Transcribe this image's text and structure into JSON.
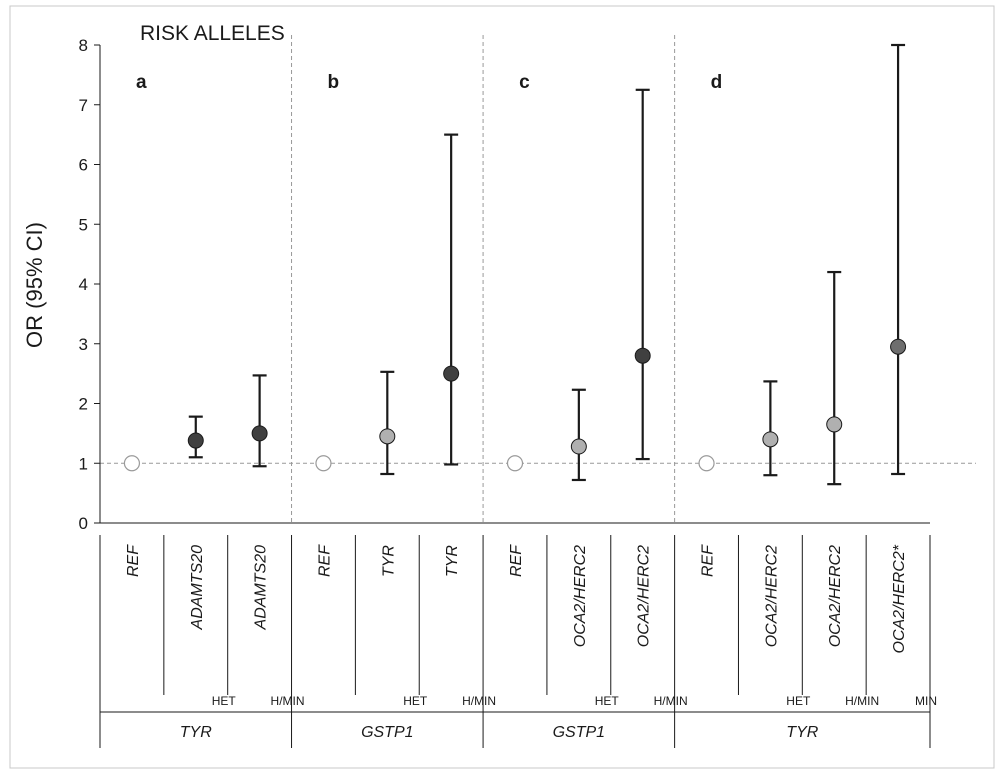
{
  "chart_data": {
    "type": "scatter",
    "title": "RISK ALLELES",
    "ylabel": "OR (95% CI)",
    "ylim": [
      0,
      8
    ],
    "yticks": [
      "0",
      "1",
      "2",
      "3",
      "4",
      "5",
      "6",
      "7",
      "8"
    ],
    "reference_line": 1,
    "panels": [
      {
        "label": "a",
        "gene": "TYR",
        "points": [
          {
            "label": "REF",
            "group": "",
            "or": 1.0,
            "lo": null,
            "hi": null,
            "fill": "#ffffff"
          },
          {
            "label": "ADAMTS20",
            "group": "HET",
            "or": 1.38,
            "lo": 1.1,
            "hi": 1.78,
            "fill": "#404040"
          },
          {
            "label": "ADAMTS20",
            "group": "H/MIN",
            "or": 1.5,
            "lo": 0.95,
            "hi": 2.47,
            "fill": "#404040"
          }
        ]
      },
      {
        "label": "b",
        "gene": "GSTP1",
        "points": [
          {
            "label": "REF",
            "group": "",
            "or": 1.0,
            "lo": null,
            "hi": null,
            "fill": "#ffffff"
          },
          {
            "label": "TYR",
            "group": "HET",
            "or": 1.45,
            "lo": 0.82,
            "hi": 2.53,
            "fill": "#b0b0b0"
          },
          {
            "label": "TYR",
            "group": "H/MIN",
            "or": 2.5,
            "lo": 0.98,
            "hi": 6.5,
            "fill": "#404040"
          }
        ]
      },
      {
        "label": "c",
        "gene": "GSTP1",
        "points": [
          {
            "label": "REF",
            "group": "",
            "or": 1.0,
            "lo": null,
            "hi": null,
            "fill": "#ffffff"
          },
          {
            "label": "OCA2/HERC2",
            "group": "HET",
            "or": 1.28,
            "lo": 0.72,
            "hi": 2.23,
            "fill": "#b0b0b0"
          },
          {
            "label": "OCA2/HERC2",
            "group": "H/MIN",
            "or": 2.8,
            "lo": 1.07,
            "hi": 7.25,
            "fill": "#404040"
          }
        ]
      },
      {
        "label": "d",
        "gene": "TYR",
        "points": [
          {
            "label": "REF",
            "group": "",
            "or": 1.0,
            "lo": null,
            "hi": null,
            "fill": "#ffffff"
          },
          {
            "label": "OCA2/HERC2",
            "group": "HET",
            "or": 1.4,
            "lo": 0.8,
            "hi": 2.37,
            "fill": "#b0b0b0"
          },
          {
            "label": "OCA2/HERC2",
            "group": "H/MIN",
            "or": 1.65,
            "lo": 0.65,
            "hi": 4.2,
            "fill": "#b0b0b0"
          },
          {
            "label": "OCA2/HERC2*",
            "group": "MIN",
            "or": 2.95,
            "lo": 0.82,
            "hi": 8.0,
            "fill": "#6e6e6e"
          }
        ]
      }
    ],
    "colors": {
      "hollow": "#ffffff",
      "light": "#b0b0b0",
      "mid": "#6e6e6e",
      "dark": "#404040",
      "line": "#1a1a1a",
      "guide": "#999999"
    }
  }
}
